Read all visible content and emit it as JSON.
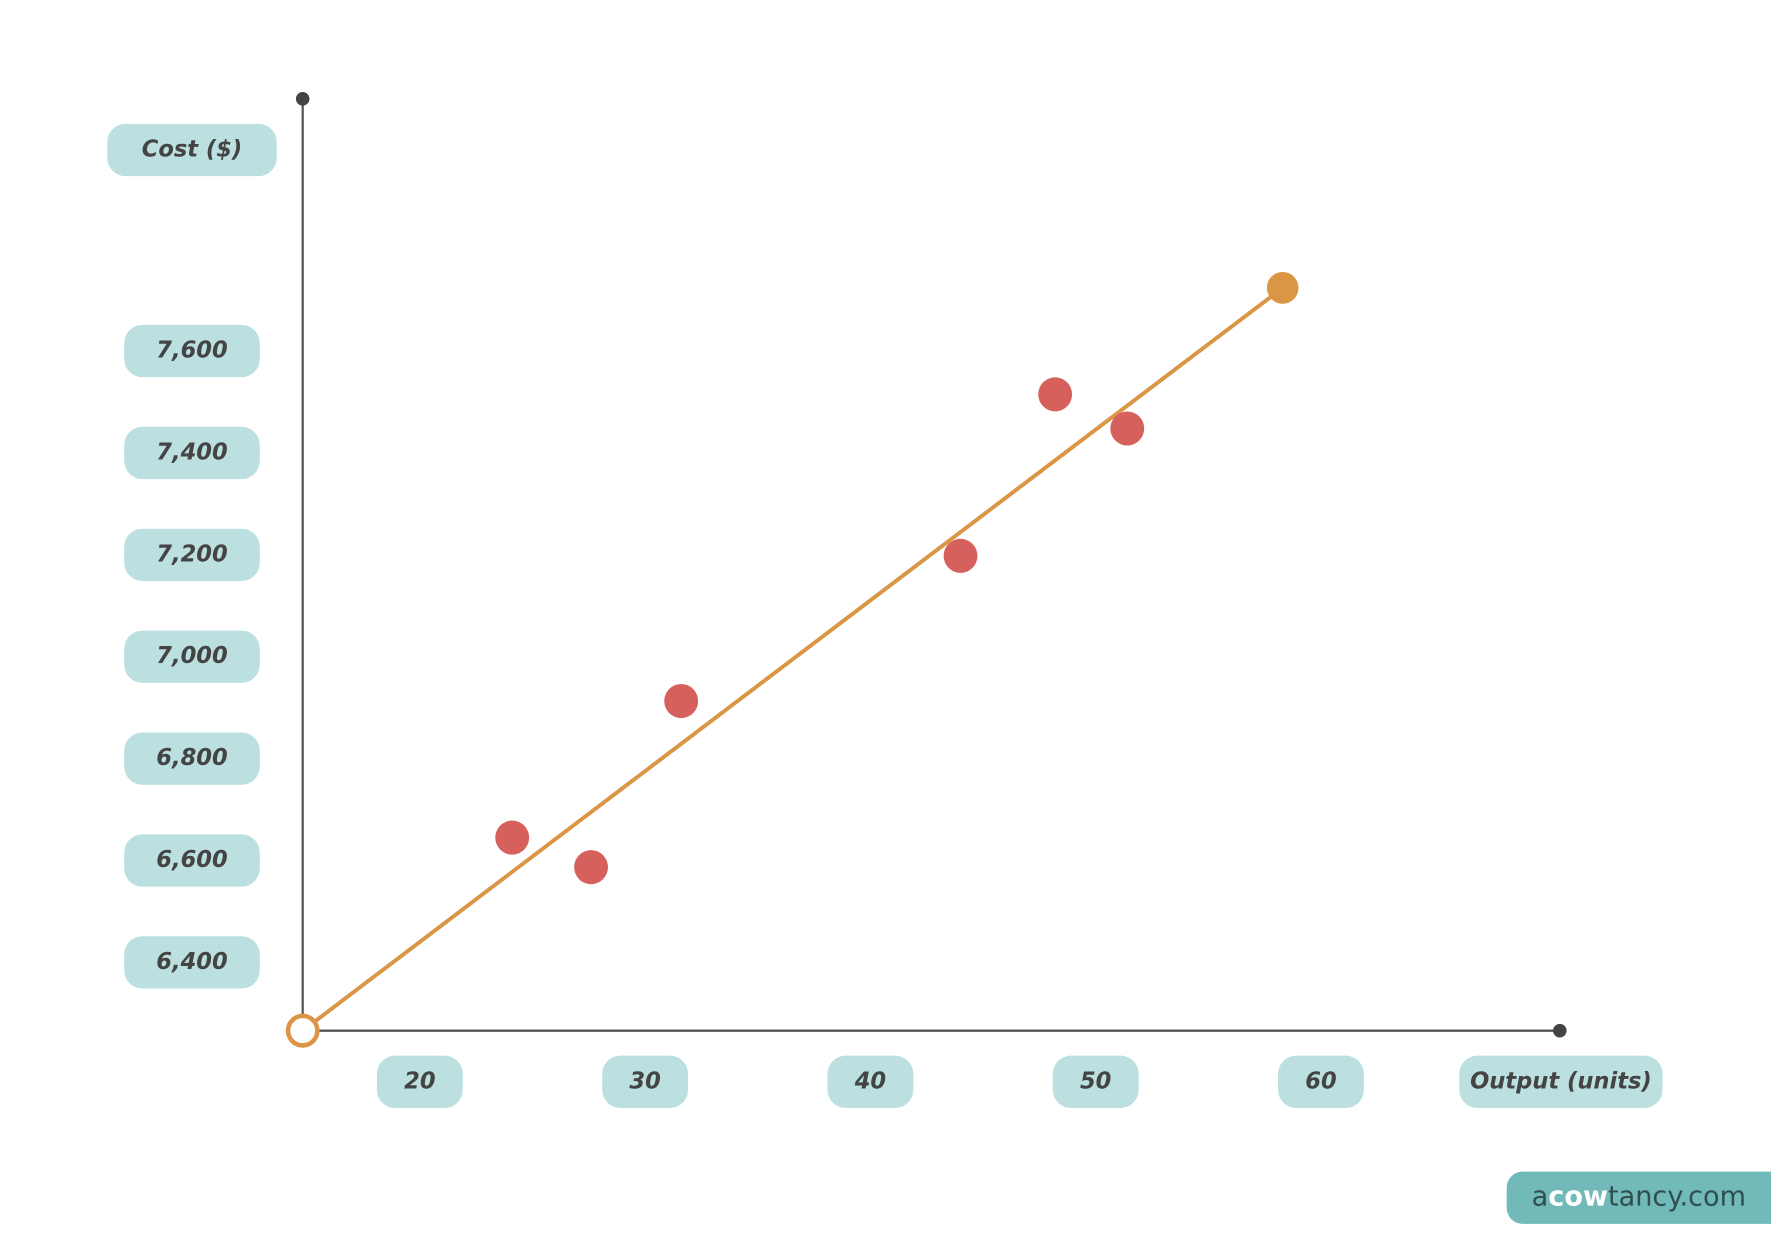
{
  "chart_data": {
    "type": "scatter",
    "y_label": "Cost ($)",
    "x_label": "Output (units)",
    "xlim": [
      14.8,
      70.6
    ],
    "ylim": [
      6266,
      8095
    ],
    "xticks": [
      20,
      30,
      40,
      50,
      60
    ],
    "yticks": [
      {
        "value": 6400,
        "label": "6,400"
      },
      {
        "value": 6600,
        "label": "6,600"
      },
      {
        "value": 6800,
        "label": "6,800"
      },
      {
        "value": 7000,
        "label": "7,000"
      },
      {
        "value": 7200,
        "label": "7,200"
      },
      {
        "value": 7400,
        "label": "7,400"
      },
      {
        "value": 7600,
        "label": "7,600"
      }
    ],
    "points": {
      "color": "#d6605b",
      "x": [
        24.1,
        27.6,
        31.6,
        44.0,
        48.2,
        51.4
      ],
      "y": [
        6645,
        6587,
        6913,
        7198,
        7515,
        7448
      ]
    },
    "fit_line": {
      "color": "#db9645",
      "x": [
        14.8,
        58.3
      ],
      "y": [
        6266,
        7724
      ]
    },
    "grid": false
  },
  "branding": {
    "parts": [
      "a",
      "cow",
      "tancy.com"
    ]
  }
}
